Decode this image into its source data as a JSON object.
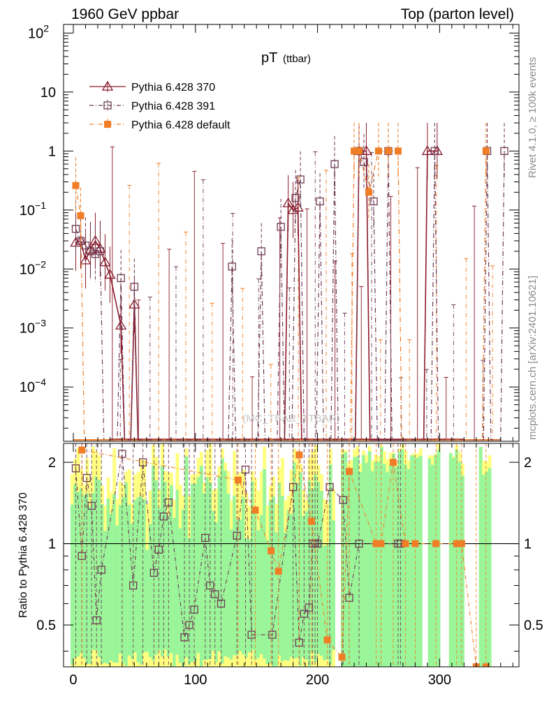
{
  "header": {
    "left": "1960 GeV ppbar",
    "right": "Top (parton level)"
  },
  "side_labels": {
    "rivet": "Rivet 4.1.0, ≥ 100k events",
    "mcplots": "mcplots.cern.ch [arXiv:2401.10621]"
  },
  "chart_data": {
    "type": "line",
    "title": "pT",
    "title_sub": "(ttbar)",
    "watermark": "(MC_TBAR_TTBAR)",
    "xlabel": "",
    "ylabel_ratio": "Ratio to Pythia 6.428 370",
    "xlim": [
      -8,
      365
    ],
    "ylim_main": [
      1.2e-05,
      140
    ],
    "ylim_ratio": [
      0.35,
      2.35
    ],
    "yscale_main": "log",
    "yscale_ratio": "log",
    "x_ticks": [
      "0",
      "100",
      "200",
      "300"
    ],
    "x_tick_values": [
      0,
      100,
      200,
      300
    ],
    "y_ticks_main": [
      {
        "value": 100,
        "base": "10",
        "exp": "2"
      },
      {
        "value": 10,
        "base": "10",
        "exp": ""
      },
      {
        "value": 1,
        "base": "1",
        "exp": ""
      },
      {
        "value": 0.1,
        "base": "10",
        "exp": "−1"
      },
      {
        "value": 0.01,
        "base": "10",
        "exp": "−2"
      },
      {
        "value": 0.001,
        "base": "10",
        "exp": "−3"
      },
      {
        "value": 0.0001,
        "base": "10",
        "exp": "−4"
      }
    ],
    "y_ticks_ratio": [
      {
        "value": 2,
        "label": "2"
      },
      {
        "value": 1,
        "label": "1"
      },
      {
        "value": 0.5,
        "label": "0.5"
      }
    ],
    "legend_position": "top-left",
    "series": [
      {
        "name": "Pythia 6.428 370",
        "color": "#8b1a2b",
        "marker": "triangle-open",
        "dash": "solid",
        "x": [
          2,
          6,
          10,
          14,
          18,
          22,
          26,
          30,
          39,
          50,
          176,
          180,
          184,
          234,
          240,
          290,
          298
        ],
        "y": [
          0.028,
          0.03,
          0.014,
          0.021,
          0.03,
          0.022,
          0.013,
          0.008,
          0.0011,
          0.0025,
          0.13,
          0.1,
          0.11,
          1.0,
          1.0,
          1.0,
          1.0
        ]
      },
      {
        "name": "Pythia 6.428 391",
        "color": "#6e3a52",
        "marker": "square-open",
        "dash": "dashdot",
        "x": [
          2,
          6,
          10,
          14,
          18,
          22,
          39,
          50,
          130,
          154,
          170,
          182,
          186,
          202,
          214,
          234,
          238,
          246,
          258,
          296,
          339,
          353
        ],
        "y": [
          0.048,
          0.03,
          0.025,
          0.02,
          0.018,
          0.02,
          0.007,
          0.005,
          0.011,
          0.02,
          0.052,
          0.16,
          0.33,
          0.14,
          0.6,
          1.0,
          0.65,
          0.14,
          1.0,
          1.0,
          1.0,
          1.0
        ]
      },
      {
        "name": "Pythia 6.428 default",
        "color": "#f07e26",
        "marker": "square-filled",
        "dash": "dashdot",
        "x": [
          2,
          6,
          230,
          234,
          242,
          250,
          258,
          266,
          338
        ],
        "y": [
          0.26,
          0.08,
          1.0,
          1.0,
          0.2,
          1.0,
          1.0,
          1.0,
          1.0
        ]
      }
    ],
    "ratio_series": [
      {
        "name": "Pythia 6.428 391 / 370",
        "x": [
          2,
          7,
          11,
          15,
          19,
          23,
          40,
          49,
          57,
          66,
          70,
          74,
          78,
          91,
          95,
          99,
          108,
          112,
          116,
          121,
          134,
          141,
          146,
          163,
          180,
          185,
          189,
          193,
          196,
          198,
          200,
          210,
          221,
          226,
          234,
          266,
          268
        ],
        "y": [
          1.9,
          0.9,
          1.75,
          1.38,
          0.52,
          0.8,
          2.15,
          0.7,
          2.0,
          0.78,
          0.95,
          1.26,
          1.42,
          0.45,
          0.5,
          0.57,
          1.05,
          0.7,
          0.65,
          0.6,
          1.07,
          1.88,
          0.46,
          0.46,
          1.62,
          0.43,
          0.55,
          0.58,
          1.0,
          1.0,
          1.0,
          1.62,
          1.45,
          0.63,
          1.0,
          1.0,
          1.0
        ]
      },
      {
        "name": "Pythia 6.428 default / 370",
        "x": [
          7,
          135,
          149,
          162,
          168,
          185,
          195,
          208,
          220,
          226,
          248,
          252,
          262,
          272,
          280,
          297,
          314,
          318,
          330,
          338
        ],
        "y": [
          2.22,
          1.72,
          1.33,
          0.94,
          0.79,
          2.13,
          1.21,
          0.44,
          0.38,
          1.85,
          1.0,
          1.0,
          2.0,
          1.0,
          1.0,
          1.0,
          1.0,
          1.0,
          0.35,
          0.35
        ]
      }
    ]
  }
}
